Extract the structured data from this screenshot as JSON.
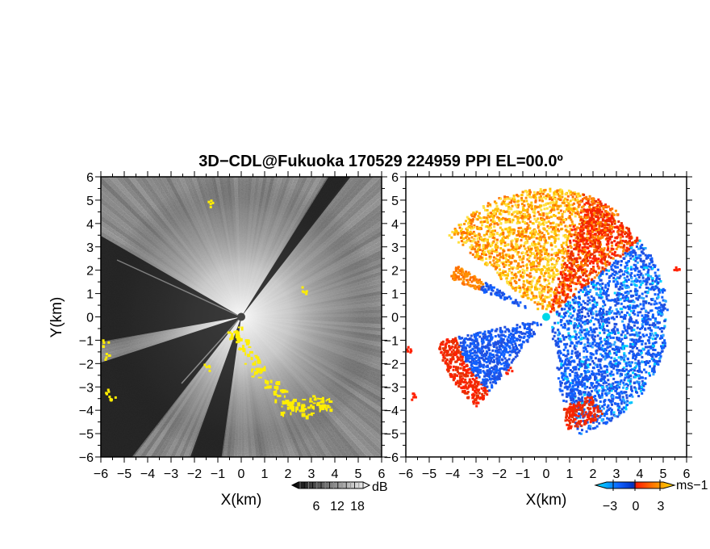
{
  "chart_data": {
    "title": "3D−CDL@Fukuoka 170529 224959 PPI EL=00.0º",
    "panels": [
      {
        "type": "heatmap",
        "quantity": "reflectivity",
        "xlabel": "X(km)",
        "ylabel": "Y(km)",
        "xlim": [
          -6,
          6
        ],
        "ylim": [
          -6,
          6
        ],
        "xticks": [
          "−6",
          "−5",
          "−4",
          "−3",
          "−2",
          "−1",
          "0",
          "1",
          "2",
          "3",
          "4",
          "5",
          "6"
        ],
        "yticks": [
          "−6",
          "−5",
          "−4",
          "−3",
          "−2",
          "−1",
          "0",
          "1",
          "2",
          "3",
          "4",
          "5",
          "6"
        ],
        "colorbar": {
          "unit": "dB",
          "ticks": [
            "6",
            "12",
            "18"
          ],
          "colors": [
            "#000000",
            "#ffffff"
          ]
        },
        "highlight_color": "#ffee00",
        "blocked_sectors_deg": [
          [
            150,
            190
          ],
          [
            198,
            232
          ],
          [
            250,
            262
          ],
          [
            52,
            58
          ]
        ]
      },
      {
        "type": "heatmap",
        "quantity": "doppler velocity",
        "xlabel": "X(km)",
        "xlim": [
          -6,
          6
        ],
        "ylim": [
          -6,
          6
        ],
        "xticks": [
          "−6",
          "−5",
          "−4",
          "−3",
          "−2",
          "−1",
          "0",
          "1",
          "2",
          "3",
          "4",
          "5",
          "6"
        ],
        "yticks": [
          "−6",
          "−5",
          "−4",
          "−3",
          "−2",
          "−1",
          "0",
          "1",
          "2",
          "3",
          "4",
          "5",
          "6"
        ],
        "colorbar": {
          "unit": "ms−1",
          "ticks": [
            "−3",
            "0",
            "3"
          ],
          "colors": [
            "#00e0ff",
            "#1050ff",
            "#ff2000",
            "#ffe000"
          ]
        },
        "center_marker_color": "#00d8e8"
      }
    ]
  }
}
